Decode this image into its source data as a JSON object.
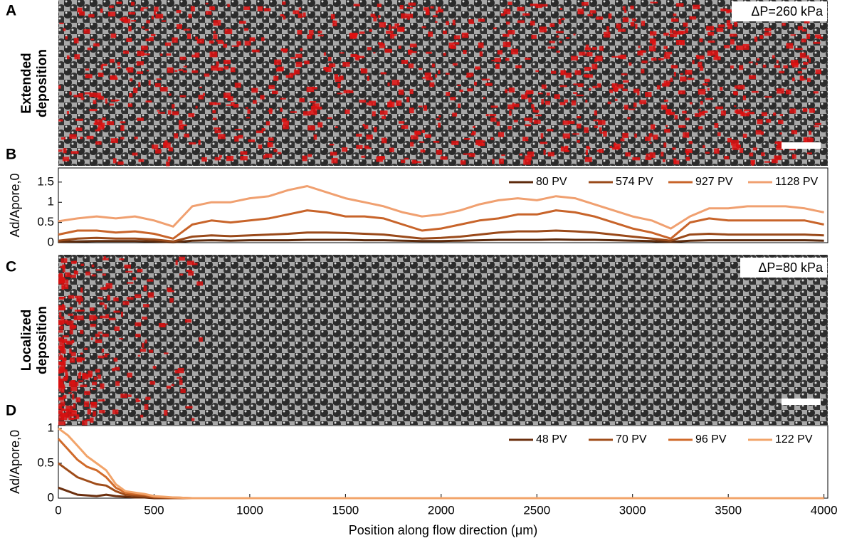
{
  "panels": [
    {
      "letter": "A",
      "label": [
        "Extended",
        "deposition"
      ],
      "annotation": "ΔP=260 kPa"
    },
    {
      "letter": "C",
      "label": [
        "Localized",
        "deposition"
      ],
      "annotation": "ΔP=80 kPa"
    }
  ],
  "chart_data": [
    {
      "letter": "B",
      "type": "line",
      "ylabel": "Ad/Apore,0",
      "x": [
        0,
        100,
        200,
        300,
        400,
        500,
        600,
        700,
        800,
        900,
        1000,
        1100,
        1200,
        1300,
        1400,
        1500,
        1600,
        1700,
        1800,
        1900,
        2000,
        2100,
        2200,
        2300,
        2400,
        2500,
        2600,
        2700,
        2800,
        2900,
        3000,
        3100,
        3200,
        3300,
        3400,
        3500,
        3600,
        3700,
        3800,
        3900,
        4000
      ],
      "xlim": [
        0,
        4020
      ],
      "ylim": [
        0,
        1.85
      ],
      "yticks": [
        0,
        0.5,
        1,
        1.5
      ],
      "legend": "upper right",
      "series": [
        {
          "name": "80 PV",
          "color": "#5c2a0c",
          "values": [
            0.02,
            0.03,
            0.04,
            0.04,
            0.04,
            0.03,
            0.01,
            0.05,
            0.06,
            0.05,
            0.06,
            0.06,
            0.06,
            0.07,
            0.07,
            0.07,
            0.06,
            0.06,
            0.05,
            0.04,
            0.04,
            0.05,
            0.06,
            0.07,
            0.07,
            0.07,
            0.08,
            0.07,
            0.07,
            0.06,
            0.05,
            0.04,
            0.02,
            0.05,
            0.06,
            0.06,
            0.06,
            0.06,
            0.06,
            0.06,
            0.05
          ]
        },
        {
          "name": "574 PV",
          "color": "#9a4a1a",
          "values": [
            0.05,
            0.1,
            0.12,
            0.1,
            0.1,
            0.08,
            0.03,
            0.15,
            0.18,
            0.16,
            0.18,
            0.2,
            0.22,
            0.25,
            0.25,
            0.24,
            0.22,
            0.2,
            0.15,
            0.1,
            0.12,
            0.15,
            0.2,
            0.25,
            0.28,
            0.28,
            0.3,
            0.28,
            0.25,
            0.2,
            0.15,
            0.1,
            0.05,
            0.2,
            0.22,
            0.2,
            0.2,
            0.2,
            0.2,
            0.2,
            0.18
          ]
        },
        {
          "name": "927 PV",
          "color": "#c8642a",
          "values": [
            0.2,
            0.3,
            0.3,
            0.25,
            0.28,
            0.22,
            0.1,
            0.45,
            0.55,
            0.5,
            0.55,
            0.6,
            0.7,
            0.8,
            0.75,
            0.65,
            0.65,
            0.6,
            0.45,
            0.3,
            0.35,
            0.45,
            0.55,
            0.6,
            0.7,
            0.7,
            0.8,
            0.75,
            0.65,
            0.5,
            0.35,
            0.25,
            0.1,
            0.5,
            0.6,
            0.55,
            0.55,
            0.55,
            0.55,
            0.55,
            0.45
          ]
        },
        {
          "name": "1128 PV",
          "color": "#f0a070",
          "values": [
            0.53,
            0.6,
            0.65,
            0.6,
            0.65,
            0.55,
            0.4,
            0.9,
            1.0,
            1.0,
            1.1,
            1.15,
            1.3,
            1.4,
            1.25,
            1.1,
            1.0,
            0.9,
            0.75,
            0.65,
            0.7,
            0.8,
            0.95,
            1.05,
            1.1,
            1.05,
            1.15,
            1.1,
            0.95,
            0.8,
            0.65,
            0.55,
            0.35,
            0.65,
            0.85,
            0.85,
            0.9,
            0.9,
            0.9,
            0.85,
            0.75
          ]
        }
      ]
    },
    {
      "letter": "D",
      "type": "line",
      "ylabel": "Ad/Apore,0",
      "xlabel": "Position along flow direction (μm)",
      "x": [
        0,
        50,
        100,
        150,
        200,
        250,
        300,
        350,
        400,
        450,
        500,
        550,
        600,
        700,
        800,
        900,
        1000,
        1100,
        1200,
        1300,
        1400,
        1500,
        1600,
        1700,
        1800,
        1900,
        2000,
        2100,
        2200,
        2300,
        2400,
        2500,
        2600,
        2700,
        2800,
        2900,
        3000,
        3100,
        3200,
        3300,
        3400,
        3500,
        3600,
        3700,
        3800,
        3900,
        4000
      ],
      "xlim": [
        0,
        4020
      ],
      "ylim": [
        0,
        1.04
      ],
      "yticks": [
        0,
        0.5,
        1
      ],
      "xticks": [
        0,
        500,
        1000,
        1500,
        2000,
        2500,
        3000,
        3500,
        4000
      ],
      "legend": "upper right",
      "series": [
        {
          "name": "48 PV",
          "color": "#6b2f0e",
          "values": [
            0.15,
            0.1,
            0.05,
            0.04,
            0.03,
            0.05,
            0.03,
            0.02,
            0.01,
            0.01,
            0,
            0,
            0,
            0,
            0,
            0,
            0,
            0,
            0,
            0,
            0,
            0,
            0,
            0,
            0,
            0,
            0,
            0,
            0,
            0,
            0,
            0,
            0,
            0,
            0,
            0,
            0,
            0,
            0,
            0,
            0,
            0,
            0,
            0,
            0,
            0,
            0
          ]
        },
        {
          "name": "70 PV",
          "color": "#a04d1a",
          "values": [
            0.5,
            0.4,
            0.3,
            0.25,
            0.2,
            0.18,
            0.1,
            0.05,
            0.04,
            0.03,
            0.01,
            0.01,
            0,
            0,
            0,
            0,
            0,
            0,
            0,
            0,
            0,
            0,
            0,
            0,
            0,
            0,
            0,
            0,
            0,
            0,
            0,
            0,
            0,
            0,
            0,
            0,
            0,
            0,
            0,
            0,
            0,
            0,
            0,
            0,
            0,
            0,
            0
          ]
        },
        {
          "name": "96 PV",
          "color": "#d06a2a",
          "values": [
            0.85,
            0.7,
            0.55,
            0.45,
            0.4,
            0.3,
            0.15,
            0.08,
            0.06,
            0.05,
            0.02,
            0.01,
            0.01,
            0,
            0,
            0,
            0,
            0,
            0,
            0,
            0,
            0,
            0,
            0,
            0,
            0,
            0,
            0,
            0,
            0,
            0,
            0,
            0,
            0,
            0,
            0,
            0,
            0,
            0,
            0,
            0,
            0,
            0,
            0,
            0,
            0,
            0
          ]
        },
        {
          "name": "122 PV",
          "color": "#f2a46a",
          "values": [
            1.0,
            0.9,
            0.75,
            0.6,
            0.5,
            0.4,
            0.2,
            0.1,
            0.08,
            0.06,
            0.03,
            0.02,
            0.01,
            0,
            0,
            0,
            0,
            0,
            0,
            0,
            0,
            0,
            0,
            0,
            0,
            0,
            0,
            0,
            0,
            0,
            0,
            0,
            0,
            0,
            0,
            0,
            0,
            0,
            0,
            0,
            0,
            0,
            0,
            0,
            0,
            0,
            0
          ]
        }
      ]
    }
  ]
}
